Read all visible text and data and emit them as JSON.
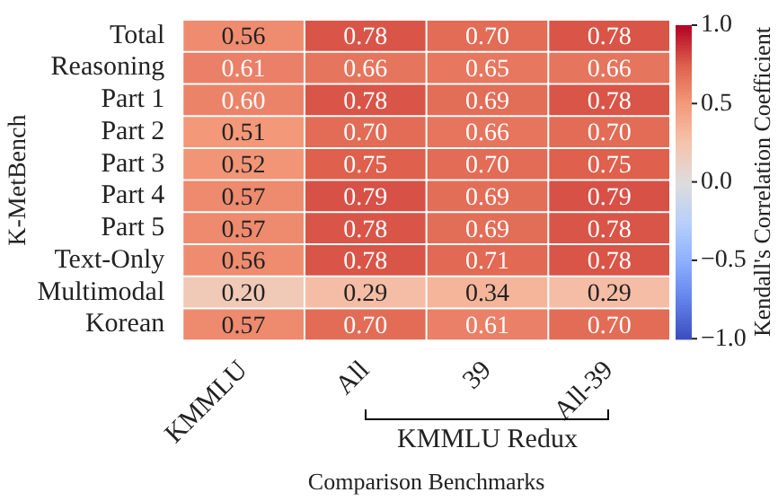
{
  "chart_data": {
    "type": "heatmap",
    "xlabel": "Comparison Benchmarks",
    "ylabel": "K-MetBench",
    "clabel": "Kendall's Correlation Coefficient",
    "categories": [
      "KMMLU",
      "All",
      "39",
      "All-39"
    ],
    "y_categories": [
      "Total",
      "Reasoning",
      "Part 1",
      "Part 2",
      "Part 3",
      "Part 4",
      "Part 5",
      "Text-Only",
      "Multimodal",
      "Korean"
    ],
    "cells": [
      [
        0.56,
        0.78,
        0.7,
        0.78
      ],
      [
        0.61,
        0.66,
        0.65,
        0.66
      ],
      [
        0.6,
        0.78,
        0.69,
        0.78
      ],
      [
        0.51,
        0.7,
        0.66,
        0.7
      ],
      [
        0.52,
        0.75,
        0.7,
        0.75
      ],
      [
        0.57,
        0.79,
        0.69,
        0.79
      ],
      [
        0.57,
        0.78,
        0.69,
        0.78
      ],
      [
        0.56,
        0.78,
        0.71,
        0.78
      ],
      [
        0.2,
        0.29,
        0.34,
        0.29
      ],
      [
        0.57,
        0.7,
        0.61,
        0.7
      ]
    ],
    "data_labels": true,
    "cell_labels": [
      [
        "0.56",
        "0.78",
        "0.70",
        "0.78"
      ],
      [
        "0.61",
        "0.66",
        "0.65",
        "0.66"
      ],
      [
        "0.60",
        "0.78",
        "0.69",
        "0.78"
      ],
      [
        "0.51",
        "0.70",
        "0.66",
        "0.70"
      ],
      [
        "0.52",
        "0.75",
        "0.70",
        "0.75"
      ],
      [
        "0.57",
        "0.79",
        "0.69",
        "0.79"
      ],
      [
        "0.57",
        "0.78",
        "0.69",
        "0.78"
      ],
      [
        "0.56",
        "0.78",
        "0.71",
        "0.78"
      ],
      [
        "0.20",
        "0.29",
        "0.34",
        "0.29"
      ],
      [
        "0.57",
        "0.70",
        "0.61",
        "0.70"
      ]
    ],
    "clim": [
      -1,
      1
    ],
    "cticks": [
      {
        "value": -1,
        "label": "−1.0"
      },
      {
        "value": -0.5,
        "label": "−0.5"
      },
      {
        "value": 0,
        "label": "0.0"
      },
      {
        "value": 0.5,
        "label": "0.5"
      },
      {
        "value": 1,
        "label": "1.0"
      }
    ],
    "annotations": [
      "KMMLU Redux"
    ]
  }
}
